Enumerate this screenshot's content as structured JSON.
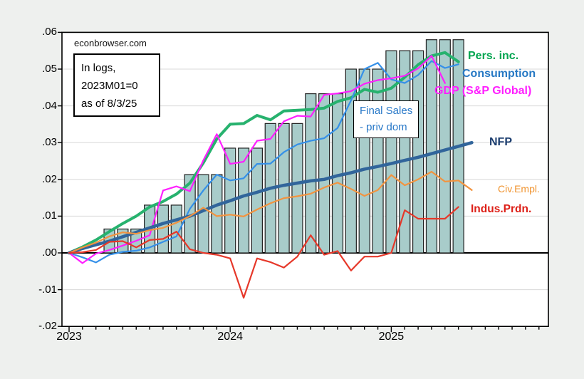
{
  "watermark": "econbrowser.com",
  "note_box": {
    "lines": [
      "In logs,",
      "2023M01=0",
      "as of 8/3/25"
    ]
  },
  "axes": {
    "y_tick_labels": [
      ".06",
      ".05",
      ".04",
      ".03",
      ".02",
      ".01",
      ".00",
      "-.01",
      "-.02"
    ],
    "y_tick_values": [
      0.06,
      0.05,
      0.04,
      0.03,
      0.02,
      0.01,
      0.0,
      -0.01,
      -0.02
    ],
    "x_year_labels": [
      "2023",
      "2024",
      "2025"
    ]
  },
  "chart_data": {
    "type": "mixed bar+line, monthly log levels relative to 2023M01",
    "title": "In logs, 2023M01=0, as of 8/3/25",
    "x": [
      "2023-01",
      "2023-02",
      "2023-03",
      "2023-04",
      "2023-05",
      "2023-06",
      "2023-07",
      "2023-08",
      "2023-09",
      "2023-10",
      "2023-11",
      "2023-12",
      "2024-01",
      "2024-02",
      "2024-03",
      "2024-04",
      "2024-05",
      "2024-06",
      "2024-07",
      "2024-08",
      "2024-09",
      "2024-10",
      "2024-11",
      "2024-12",
      "2025-01",
      "2025-02",
      "2025-03",
      "2025-04",
      "2025-05",
      "2025-06",
      "2025-07"
    ],
    "y_axis": {
      "min": -0.02,
      "max": 0.06,
      "tick_step": 0.01,
      "grid": true
    },
    "bar_series": {
      "name": "Final Sales - priv dom",
      "label_lines": [
        "Final Sales",
        "- priv dom"
      ],
      "color": "#A8CCCA",
      "edge_color": "#1F1F1F",
      "quarterly_values": {
        "2023Q2": 0.0065,
        "2023Q3": 0.013,
        "2023Q4": 0.0213,
        "2024Q1": 0.0285,
        "2024Q2": 0.0352,
        "2024Q3": 0.0433,
        "2024Q4": 0.05,
        "2025Q1": 0.055,
        "2025Q2": 0.058
      },
      "values": [
        null,
        null,
        null,
        0.0065,
        0.0065,
        0.0065,
        0.013,
        0.013,
        0.013,
        0.0213,
        0.0213,
        0.0213,
        0.0285,
        0.0285,
        0.0285,
        0.0352,
        0.0352,
        0.0352,
        0.0433,
        0.0433,
        0.0433,
        0.05,
        0.05,
        0.05,
        0.055,
        0.055,
        0.055,
        0.058,
        0.058,
        0.058,
        null
      ]
    },
    "line_series": [
      {
        "name": "Pers. inc.",
        "color": "#27B26E",
        "width": 4,
        "values": [
          0,
          0.0016,
          0.0035,
          0.0058,
          0.008,
          0.01,
          0.0125,
          0.014,
          0.016,
          0.019,
          0.0245,
          0.031,
          0.035,
          0.0352,
          0.0374,
          0.0362,
          0.0386,
          0.0388,
          0.039,
          0.0394,
          0.0412,
          0.0422,
          0.0445,
          0.0437,
          0.0448,
          0.0478,
          0.0512,
          0.0536,
          0.0545,
          0.052,
          null
        ]
      },
      {
        "name": "Consumption",
        "color": "#3590E8",
        "width": 2.2,
        "values": [
          0,
          -0.0012,
          -0.0026,
          -0.0005,
          0.0003,
          0.0006,
          0.0015,
          0.003,
          0.0045,
          0.012,
          0.017,
          0.0213,
          0.0197,
          0.0203,
          0.0242,
          0.0243,
          0.0274,
          0.0295,
          0.0305,
          0.0312,
          0.034,
          0.0415,
          0.05,
          0.0517,
          0.0472,
          0.0462,
          0.0484,
          0.0522,
          0.0503,
          0.0513,
          null
        ]
      },
      {
        "name": "GDP (S&P Global)",
        "color": "#FF1FFF",
        "width": 2.2,
        "values": [
          0,
          -0.0028,
          -0.0002,
          0.0008,
          0.002,
          0.0033,
          0.0048,
          0.017,
          0.0181,
          0.0168,
          0.0252,
          0.0323,
          0.0242,
          0.0248,
          0.0305,
          0.031,
          0.0358,
          0.0373,
          0.0371,
          0.043,
          0.0434,
          0.044,
          0.046,
          0.047,
          0.0475,
          0.0482,
          0.0502,
          0.0536,
          0.0462,
          null,
          null
        ]
      },
      {
        "name": "NFP",
        "color": "#31659B",
        "width": 4.5,
        "values": [
          0,
          0.0012,
          0.0022,
          0.0032,
          0.0044,
          0.0056,
          0.0068,
          0.008,
          0.009,
          0.01,
          0.0115,
          0.013,
          0.0142,
          0.0155,
          0.0165,
          0.0176,
          0.0184,
          0.019,
          0.0196,
          0.02,
          0.021,
          0.0218,
          0.0228,
          0.0235,
          0.0243,
          0.0252,
          0.026,
          0.027,
          0.028,
          0.029,
          0.03
        ]
      },
      {
        "name": "Civ.Empl.",
        "color": "#F29440",
        "width": 2.2,
        "values": [
          0,
          0.0015,
          0.0028,
          0.0045,
          0.0056,
          0.0052,
          0.0062,
          0.0068,
          0.0082,
          0.01,
          0.0123,
          0.01,
          0.0104,
          0.0099,
          0.0118,
          0.0135,
          0.0149,
          0.0154,
          0.0161,
          0.0178,
          0.0191,
          0.0174,
          0.0155,
          0.0171,
          0.0212,
          0.0184,
          0.02,
          0.0221,
          0.0194,
          0.0197,
          0.0171
        ]
      },
      {
        "name": "Indus.Prdn.",
        "color": "#E6382A",
        "width": 2.2,
        "values": [
          0,
          0.0002,
          0.0008,
          0.003,
          0.0032,
          0.0015,
          0.0035,
          0.0038,
          0.0058,
          0.001,
          0,
          -0.0005,
          -0.0015,
          -0.0122,
          -0.0015,
          -0.0025,
          -0.004,
          -0.001,
          0.0048,
          -0.0005,
          0.0005,
          -0.0048,
          -0.001,
          -0.001,
          0,
          0.0116,
          0.0093,
          0.0093,
          0.0093,
          0.0125,
          null
        ]
      }
    ],
    "legend_labels": {
      "pers_inc": "Pers. inc.",
      "consumption": "Consumption",
      "gdp": "GDP (S&P Global)",
      "nfp": "NFP",
      "civ_empl": "Civ.Empl.",
      "indus_prdn": "Indus.Prdn."
    }
  }
}
